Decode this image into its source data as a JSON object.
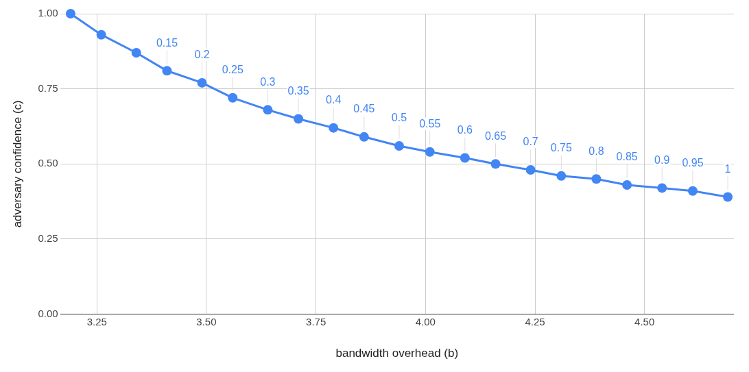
{
  "chart_data": {
    "type": "line",
    "xlabel": "bandwidth overhead (b)",
    "ylabel": "adversary confidence (c)",
    "x": [
      3.19,
      3.26,
      3.34,
      3.41,
      3.49,
      3.56,
      3.64,
      3.71,
      3.79,
      3.86,
      3.94,
      4.01,
      4.09,
      4.16,
      4.24,
      4.31,
      4.39,
      4.46,
      4.54,
      4.61,
      4.69
    ],
    "series": [
      {
        "color": "#4285f4",
        "values": [
          1.0,
          0.93,
          0.87,
          0.81,
          0.77,
          0.72,
          0.68,
          0.65,
          0.62,
          0.59,
          0.56,
          0.54,
          0.52,
          0.5,
          0.48,
          0.46,
          0.45,
          0.43,
          0.42,
          0.41,
          0.39
        ]
      }
    ],
    "annotations": [
      {
        "text": "0.15",
        "x": 3.41,
        "y": 0.81
      },
      {
        "text": "0.2",
        "x": 3.49,
        "y": 0.77
      },
      {
        "text": "0.25",
        "x": 3.56,
        "y": 0.72
      },
      {
        "text": "0.3",
        "x": 3.64,
        "y": 0.68
      },
      {
        "text": "0.35",
        "x": 3.71,
        "y": 0.65
      },
      {
        "text": "0.4",
        "x": 3.79,
        "y": 0.62
      },
      {
        "text": "0.45",
        "x": 3.86,
        "y": 0.59
      },
      {
        "text": "0.5",
        "x": 3.94,
        "y": 0.56
      },
      {
        "text": "0.55",
        "x": 4.01,
        "y": 0.54
      },
      {
        "text": "0.6",
        "x": 4.09,
        "y": 0.52
      },
      {
        "text": "0.65",
        "x": 4.16,
        "y": 0.5
      },
      {
        "text": "0.7",
        "x": 4.24,
        "y": 0.48
      },
      {
        "text": "0.75",
        "x": 4.31,
        "y": 0.46
      },
      {
        "text": "0.8",
        "x": 4.39,
        "y": 0.45
      },
      {
        "text": "0.85",
        "x": 4.46,
        "y": 0.43
      },
      {
        "text": "0.9",
        "x": 4.54,
        "y": 0.42
      },
      {
        "text": "0.95",
        "x": 4.61,
        "y": 0.41
      },
      {
        "text": "1",
        "x": 4.69,
        "y": 0.39
      }
    ],
    "xlim": [
      3.166,
      4.704
    ],
    "ylim": [
      0,
      1
    ],
    "xticks": [
      {
        "value": 3.25,
        "label": "3.25"
      },
      {
        "value": 3.5,
        "label": "3.50"
      },
      {
        "value": 3.75,
        "label": "3.75"
      },
      {
        "value": 4,
        "label": "4.00"
      },
      {
        "value": 4.25,
        "label": "4.25"
      },
      {
        "value": 4.5,
        "label": "4.50"
      }
    ],
    "yticks": [
      {
        "value": 0,
        "label": "0.00"
      },
      {
        "value": 0.25,
        "label": "0.25"
      },
      {
        "value": 0.5,
        "label": "0.50"
      },
      {
        "value": 0.75,
        "label": "0.75"
      },
      {
        "value": 1,
        "label": "1.00"
      }
    ],
    "grid": true,
    "legend": false,
    "marker": "circle",
    "line_style": "solid"
  }
}
